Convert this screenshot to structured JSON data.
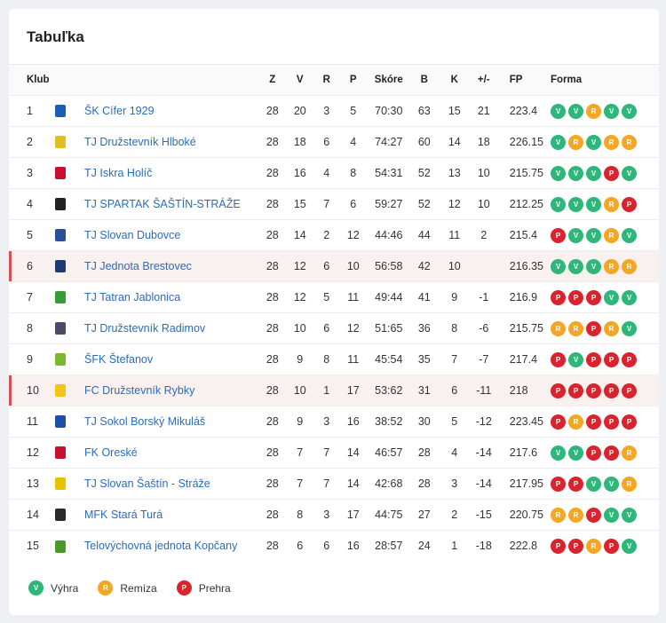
{
  "title": "Tabuľka",
  "headers": {
    "club": "Klub",
    "z": "Z",
    "v": "V",
    "r": "R",
    "p": "P",
    "score": "Skóre",
    "b": "B",
    "k": "K",
    "pm": "+/-",
    "fp": "FP",
    "form": "Forma"
  },
  "rows": [
    {
      "rank": "1",
      "name": "ŠK Cífer 1929",
      "z": "28",
      "v": "20",
      "r": "3",
      "p": "5",
      "score": "70:30",
      "b": "63",
      "k": "15",
      "pm": "21",
      "fp": "223.4",
      "form": [
        "V",
        "V",
        "R",
        "V",
        "V"
      ],
      "logo_color": "#1a5fb4",
      "highlight": false
    },
    {
      "rank": "2",
      "name": "TJ Družstevník Hlboké",
      "z": "28",
      "v": "18",
      "r": "6",
      "p": "4",
      "score": "74:27",
      "b": "60",
      "k": "14",
      "pm": "18",
      "fp": "226.15",
      "form": [
        "V",
        "R",
        "V",
        "R",
        "R"
      ],
      "logo_color": "#e0c020",
      "highlight": false
    },
    {
      "rank": "3",
      "name": "TJ Iskra Holíč",
      "z": "28",
      "v": "16",
      "r": "4",
      "p": "8",
      "score": "54:31",
      "b": "52",
      "k": "13",
      "pm": "10",
      "fp": "215.75",
      "form": [
        "V",
        "V",
        "V",
        "P",
        "V"
      ],
      "logo_color": "#c8102e",
      "highlight": false
    },
    {
      "rank": "4",
      "name": "TJ SPARTAK ŠAŠTÍN-STRÁŽE",
      "z": "28",
      "v": "15",
      "r": "7",
      "p": "6",
      "score": "59:27",
      "b": "52",
      "k": "12",
      "pm": "10",
      "fp": "212.25",
      "form": [
        "V",
        "V",
        "V",
        "R",
        "P"
      ],
      "logo_color": "#222222",
      "highlight": false
    },
    {
      "rank": "5",
      "name": "TJ Slovan Dubovce",
      "z": "28",
      "v": "14",
      "r": "2",
      "p": "12",
      "score": "44:46",
      "b": "44",
      "k": "11",
      "pm": "2",
      "fp": "215.4",
      "form": [
        "P",
        "V",
        "V",
        "R",
        "V"
      ],
      "logo_color": "#2a4e9b",
      "highlight": false
    },
    {
      "rank": "6",
      "name": "TJ Jednota Brestovec",
      "z": "28",
      "v": "12",
      "r": "6",
      "p": "10",
      "score": "56:58",
      "b": "42",
      "k": "10",
      "pm": "",
      "fp": "216.35",
      "form": [
        "V",
        "V",
        "V",
        "R",
        "R"
      ],
      "logo_color": "#1f3b73",
      "highlight": true
    },
    {
      "rank": "7",
      "name": "TJ Tatran Jablonica",
      "z": "28",
      "v": "12",
      "r": "5",
      "p": "11",
      "score": "49:44",
      "b": "41",
      "k": "9",
      "pm": "-1",
      "fp": "216.9",
      "form": [
        "P",
        "P",
        "P",
        "V",
        "V"
      ],
      "logo_color": "#3a9a3a",
      "highlight": false
    },
    {
      "rank": "8",
      "name": "TJ Družstevník Radimov",
      "z": "28",
      "v": "10",
      "r": "6",
      "p": "12",
      "score": "51:65",
      "b": "36",
      "k": "8",
      "pm": "-6",
      "fp": "215.75",
      "form": [
        "R",
        "R",
        "P",
        "R",
        "V"
      ],
      "logo_color": "#4a4a6a",
      "highlight": false
    },
    {
      "rank": "9",
      "name": "ŠFK Štefanov",
      "z": "28",
      "v": "9",
      "r": "8",
      "p": "11",
      "score": "45:54",
      "b": "35",
      "k": "7",
      "pm": "-7",
      "fp": "217.4",
      "form": [
        "P",
        "V",
        "P",
        "P",
        "P"
      ],
      "logo_color": "#7cb82f",
      "highlight": false
    },
    {
      "rank": "10",
      "name": "FC Družstevník Rybky",
      "z": "28",
      "v": "10",
      "r": "1",
      "p": "17",
      "score": "53:62",
      "b": "31",
      "k": "6",
      "pm": "-11",
      "fp": "218",
      "form": [
        "P",
        "P",
        "P",
        "P",
        "P"
      ],
      "logo_color": "#f0c419",
      "highlight": true
    },
    {
      "rank": "11",
      "name": "TJ Sokol Borský Mikuláš",
      "z": "28",
      "v": "9",
      "r": "3",
      "p": "16",
      "score": "38:52",
      "b": "30",
      "k": "5",
      "pm": "-12",
      "fp": "223.45",
      "form": [
        "P",
        "R",
        "P",
        "P",
        "P"
      ],
      "logo_color": "#1e4fa8",
      "highlight": false
    },
    {
      "rank": "12",
      "name": "FK Oreské",
      "z": "28",
      "v": "7",
      "r": "7",
      "p": "14",
      "score": "46:57",
      "b": "28",
      "k": "4",
      "pm": "-14",
      "fp": "217.6",
      "form": [
        "V",
        "V",
        "P",
        "P",
        "R"
      ],
      "logo_color": "#c8102e",
      "highlight": false
    },
    {
      "rank": "13",
      "name": "TJ Slovan Šaštín - Stráže",
      "z": "28",
      "v": "7",
      "r": "7",
      "p": "14",
      "score": "42:68",
      "b": "28",
      "k": "3",
      "pm": "-14",
      "fp": "217.95",
      "form": [
        "P",
        "P",
        "V",
        "V",
        "R"
      ],
      "logo_color": "#e6c200",
      "highlight": false
    },
    {
      "rank": "14",
      "name": "MFK Stará Turá",
      "z": "28",
      "v": "8",
      "r": "3",
      "p": "17",
      "score": "44:75",
      "b": "27",
      "k": "2",
      "pm": "-15",
      "fp": "220.75",
      "form": [
        "R",
        "R",
        "P",
        "V",
        "V"
      ],
      "logo_color": "#2a2a2a",
      "highlight": false
    },
    {
      "rank": "15",
      "name": "Telovýchovná jednota Kopčany",
      "z": "28",
      "v": "6",
      "r": "6",
      "p": "16",
      "score": "28:57",
      "b": "24",
      "k": "1",
      "pm": "-18",
      "fp": "222.8",
      "form": [
        "P",
        "P",
        "R",
        "P",
        "V"
      ],
      "logo_color": "#4a9a2a",
      "highlight": false
    }
  ],
  "legend": [
    {
      "code": "V",
      "label": "Výhra"
    },
    {
      "code": "R",
      "label": "Remíza"
    },
    {
      "code": "P",
      "label": "Prehra"
    }
  ],
  "colors": {
    "win": "#2fb67a",
    "draw": "#f5a623",
    "loss": "#d9232d",
    "link": "#2b6cb8"
  }
}
